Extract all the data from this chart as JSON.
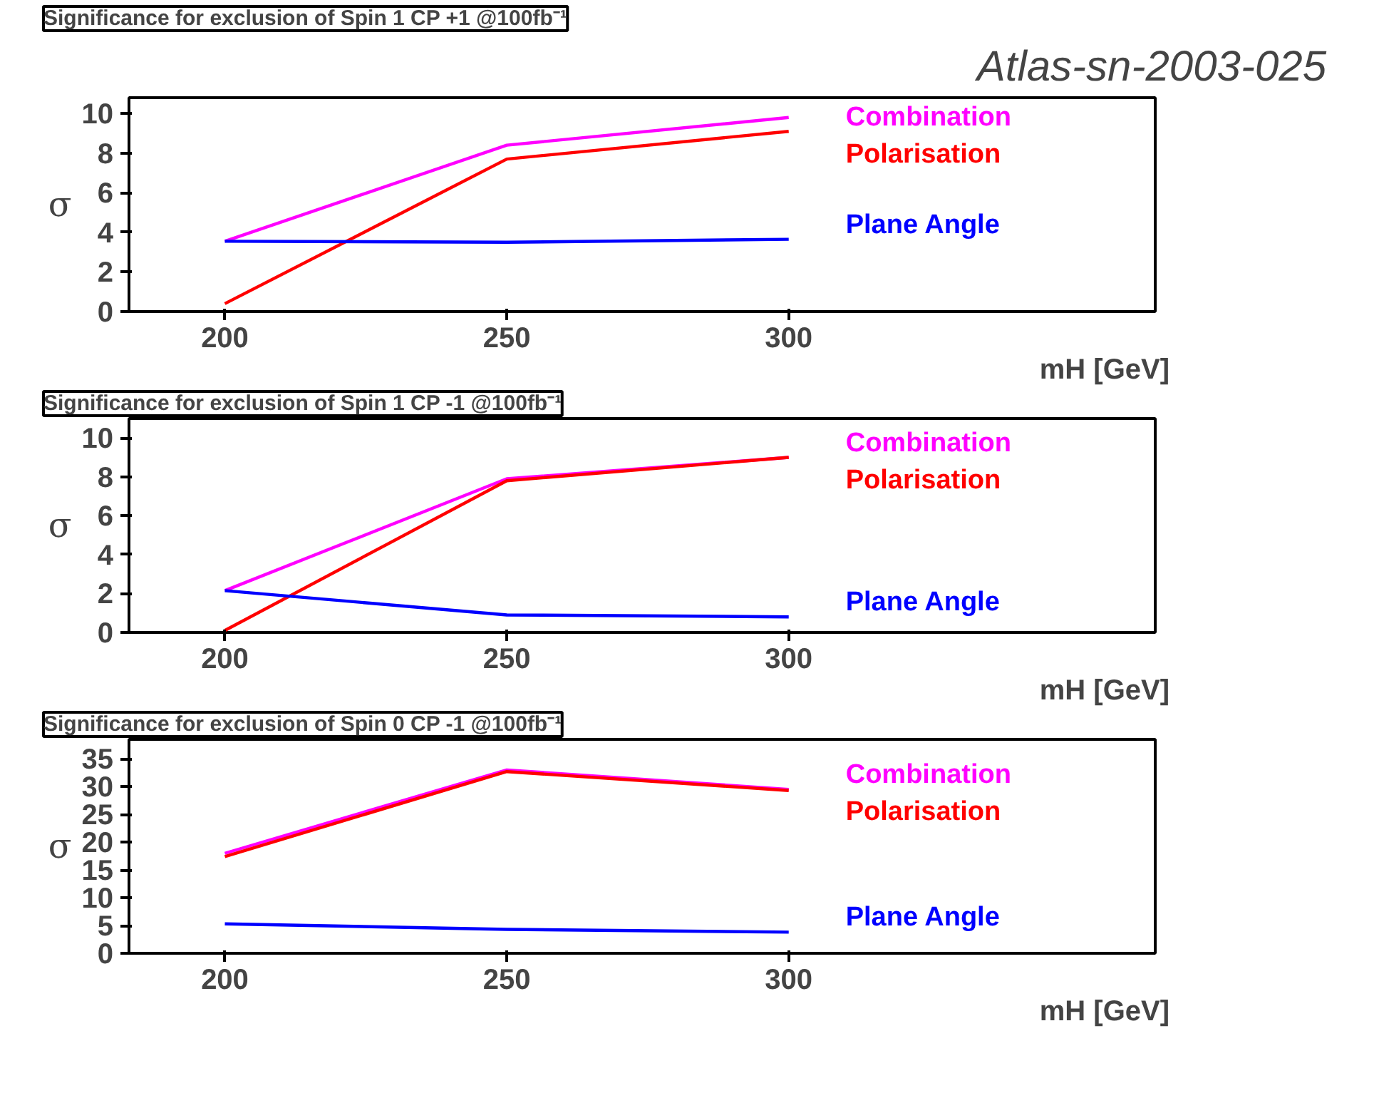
{
  "chart_data": [
    {
      "type": "line",
      "title": "Significance for exclusion of Spin 1 CP +1 @100fb⁻¹",
      "xlabel": "mH [GeV]",
      "ylabel": "σ",
      "annotations": [
        "Atlas-sn-2003-025"
      ],
      "x": [
        200,
        250,
        300
      ],
      "xlim": [
        183,
        365
      ],
      "xticks": [
        200,
        250,
        300
      ],
      "ylim": [
        0,
        10.8
      ],
      "yticks": [
        0,
        2,
        4,
        6,
        8,
        10
      ],
      "grid": false,
      "legend": false,
      "series": [
        {
          "name": "Combination",
          "color": "#ff00ff",
          "values": [
            3.55,
            8.4,
            9.8
          ]
        },
        {
          "name": "Polarisation",
          "color": "#ff0000",
          "values": [
            0.4,
            7.7,
            9.1
          ]
        },
        {
          "name": "Plane Angle",
          "color": "#0000ff",
          "values": [
            3.55,
            3.5,
            3.65
          ]
        }
      ]
    },
    {
      "type": "line",
      "title": "Significance for exclusion of Spin 1 CP -1 @100fb⁻¹",
      "xlabel": "mH [GeV]",
      "ylabel": "σ",
      "x": [
        200,
        250,
        300
      ],
      "xlim": [
        183,
        365
      ],
      "xticks": [
        200,
        250,
        300
      ],
      "ylim": [
        0,
        11
      ],
      "yticks": [
        0,
        2,
        4,
        6,
        8,
        10
      ],
      "grid": false,
      "legend": false,
      "series": [
        {
          "name": "Combination",
          "color": "#ff00ff",
          "values": [
            2.15,
            7.9,
            9.0
          ]
        },
        {
          "name": "Polarisation",
          "color": "#ff0000",
          "values": [
            0.1,
            7.8,
            9.0
          ]
        },
        {
          "name": "Plane Angle",
          "color": "#0000ff",
          "values": [
            2.15,
            0.9,
            0.8
          ]
        }
      ]
    },
    {
      "type": "line",
      "title": "Significance for exclusion of Spin 0 CP -1 @100fb⁻¹",
      "xlabel": "mH [GeV]",
      "ylabel": "σ",
      "x": [
        200,
        250,
        300
      ],
      "xlim": [
        183,
        365
      ],
      "xticks": [
        200,
        250,
        300
      ],
      "ylim": [
        0,
        38.5
      ],
      "yticks": [
        0,
        5,
        10,
        15,
        20,
        25,
        30,
        35
      ],
      "grid": false,
      "legend": false,
      "series": [
        {
          "name": "Combination",
          "color": "#ff00ff",
          "values": [
            18.0,
            33.0,
            29.5
          ]
        },
        {
          "name": "Polarisation",
          "color": "#ff0000",
          "values": [
            17.4,
            32.7,
            29.3
          ]
        },
        {
          "name": "Plane Angle",
          "color": "#0000ff",
          "values": [
            5.3,
            4.3,
            3.8
          ]
        }
      ]
    }
  ]
}
